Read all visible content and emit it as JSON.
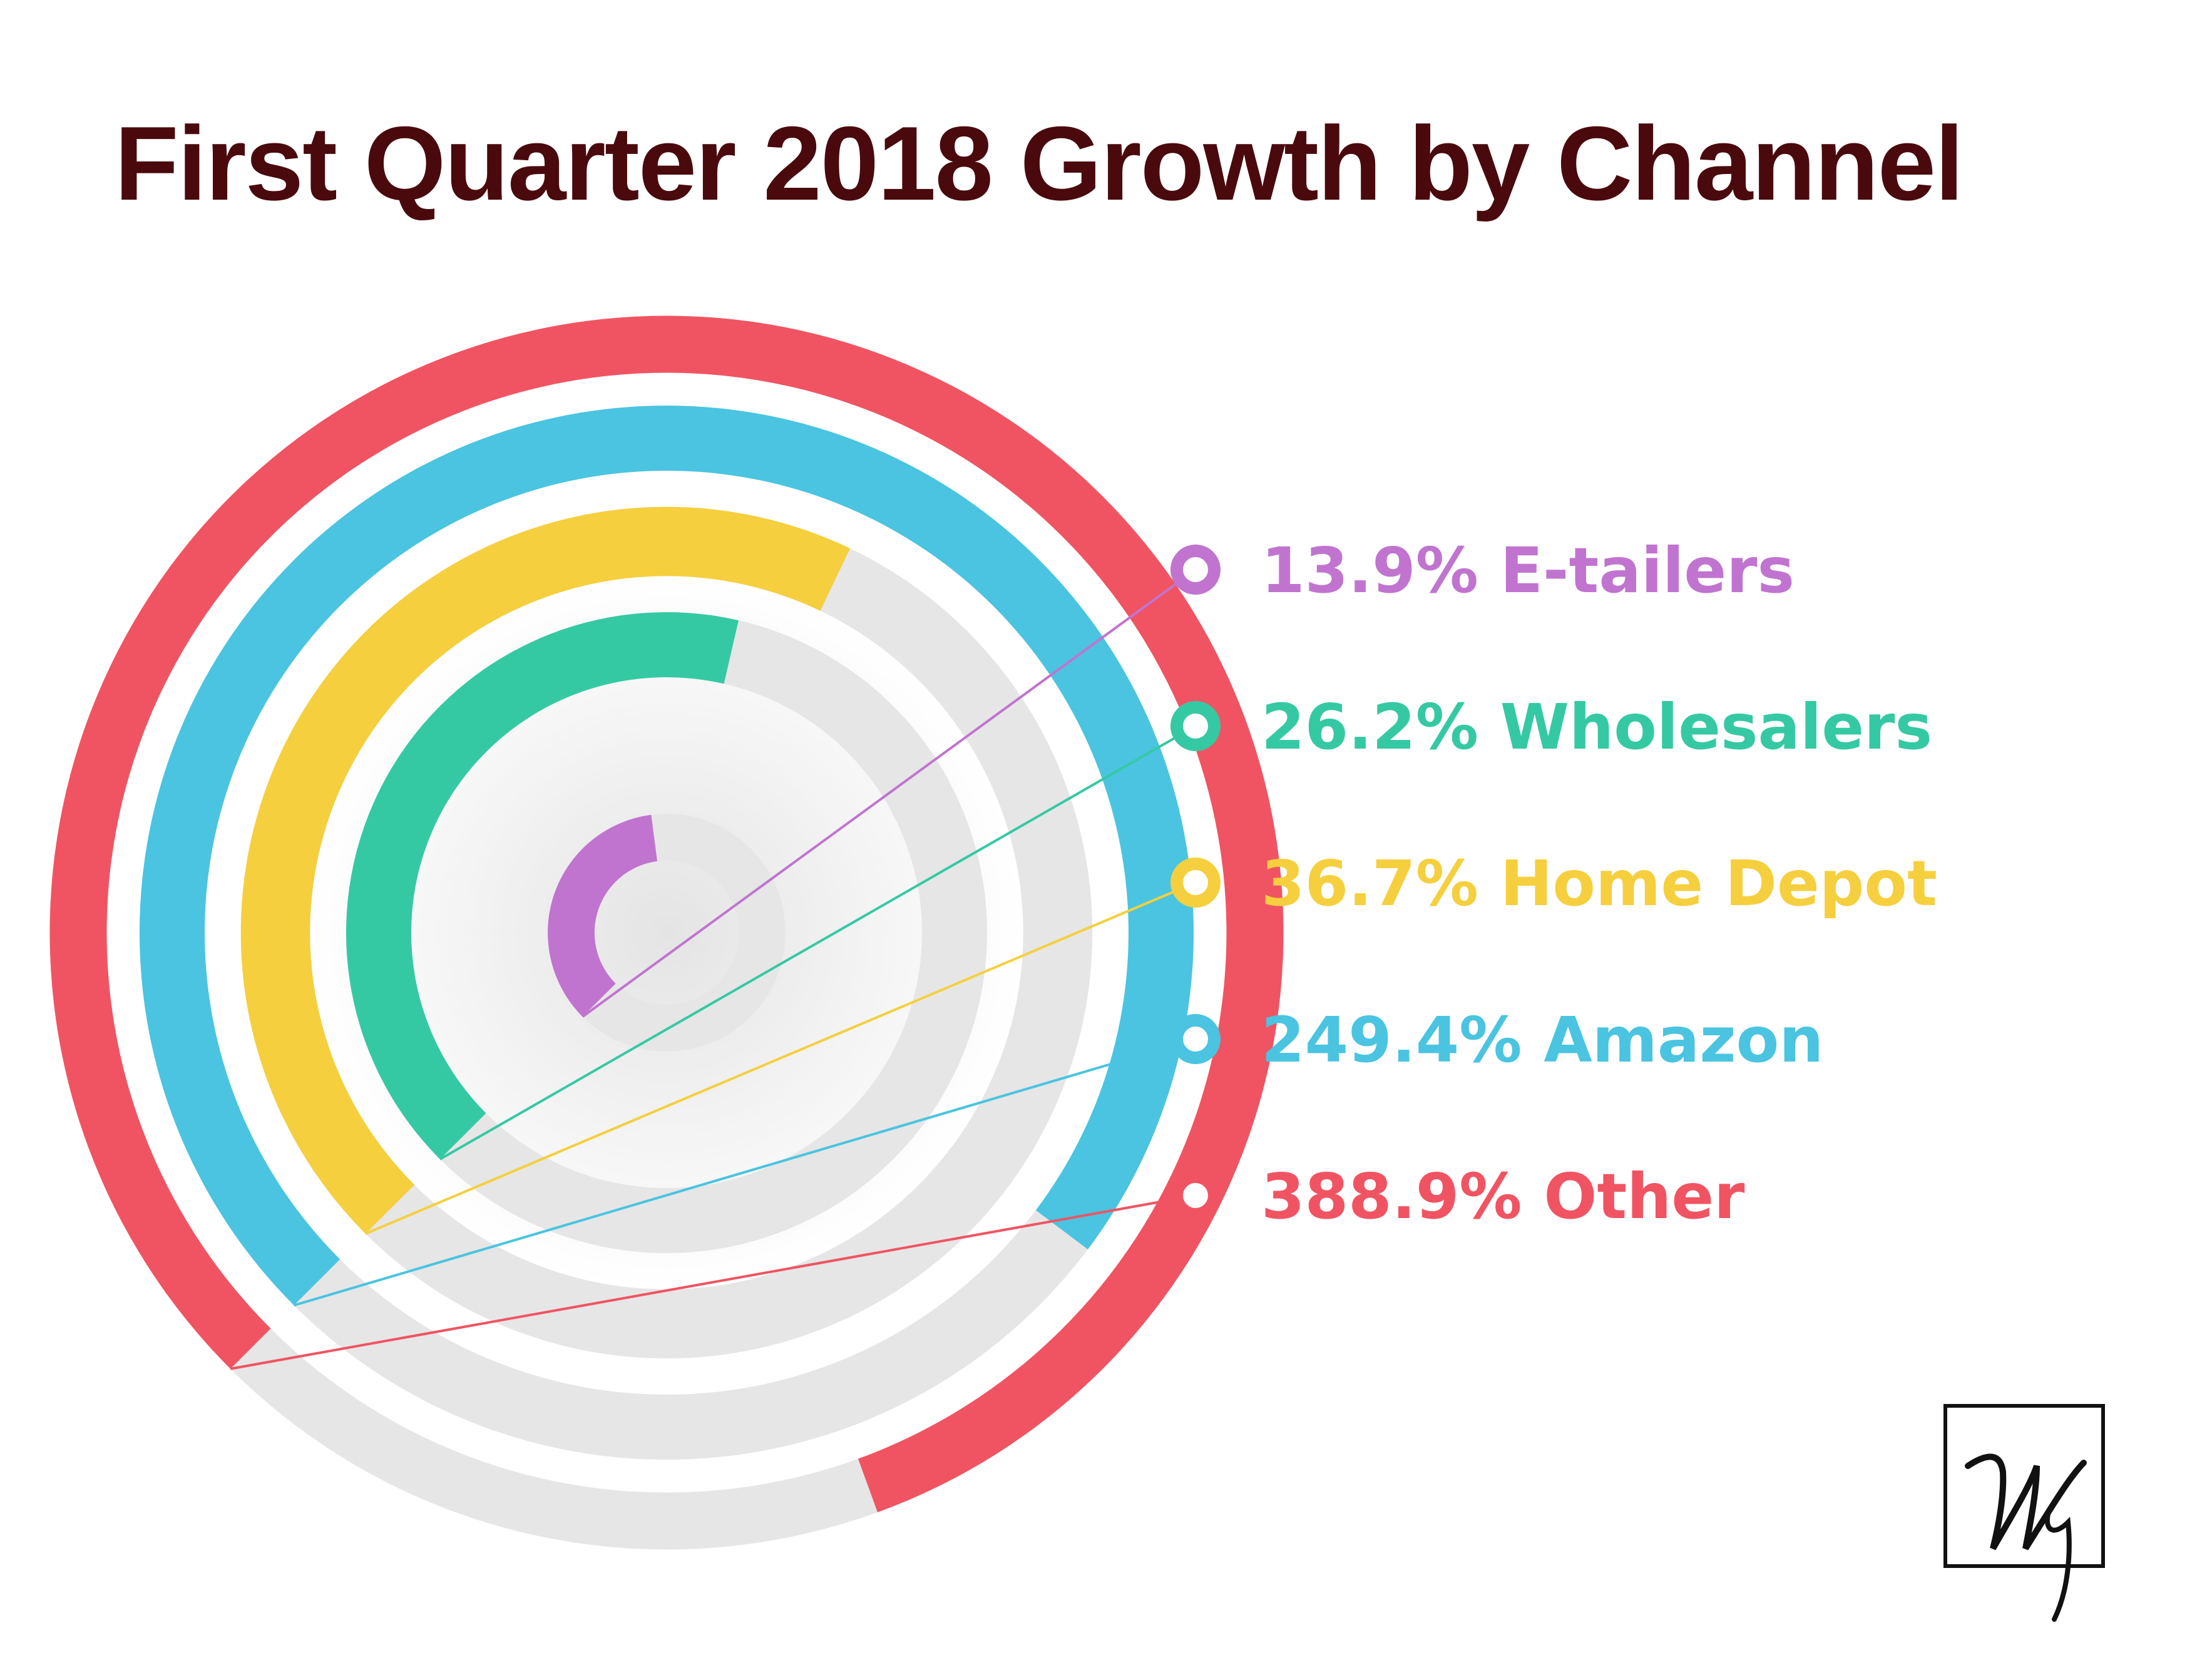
{
  "colors": {
    "title": "#4a0a0d",
    "track": "#e6e6e6",
    "Other": "#f05462",
    "Amazon": "#4ac4e0",
    "Home Depot": "#f5cf3d",
    "Wholesalers": "#35c9a3",
    "E-tailers": "#c074cf"
  },
  "chart_data": {
    "type": "radial-bar",
    "title": "First Quarter 2018 Growth by Channel",
    "unit": "%",
    "categories": [
      "E-tailers",
      "Wholesalers",
      "Home Depot",
      "Amazon",
      "Other"
    ],
    "values": [
      13.9,
      26.2,
      36.7,
      249.4,
      388.9
    ],
    "labels": [
      "13.9% E-tailers",
      "26.2% Wholesalers",
      "36.7% Home Depot",
      "249.4% Amazon",
      "388.9% Other"
    ]
  },
  "logo": {
    "monogram": "Wy"
  }
}
